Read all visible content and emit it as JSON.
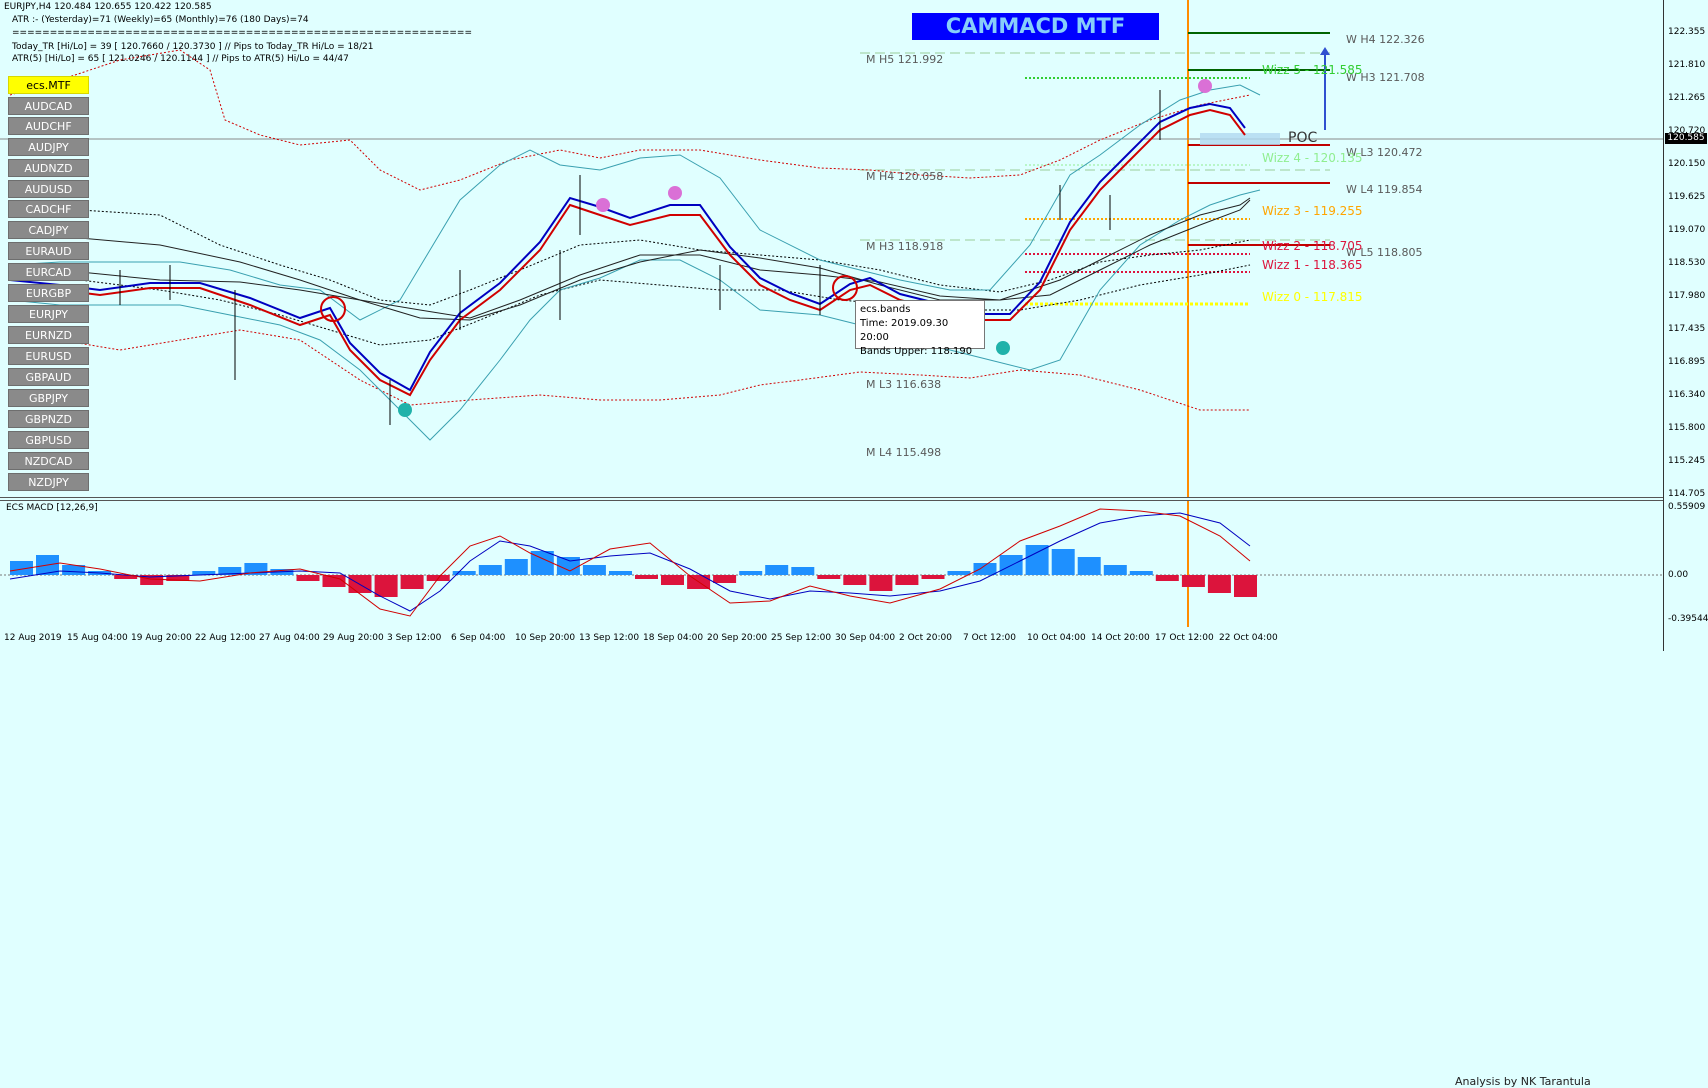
{
  "header": {
    "line1": "EURJPY,H4  120.484 120.655 120.422 120.585",
    "line2": "ATR :- (Yesterday)=71       (Weekly)=65       (Monthly)=76       (180 Days)=74",
    "line3": "=============================================================",
    "line4": "Today_TR [Hi/Lo] = 39 [ 120.7660 / 120.3730 ]   // Pips to Today_TR Hi/Lo   = 18/21",
    "line5": "ATR(5)      [Hi/Lo] = 65 [ 121.0246 / 120.1144 ]  // Pips to ATR(5) Hi/Lo      = 44/47"
  },
  "title": "CAMMACD MTF",
  "symbols": {
    "active": "ecs.MTF",
    "list": [
      "AUDCAD",
      "AUDCHF",
      "AUDJPY",
      "AUDNZD",
      "AUDUSD",
      "CADCHF",
      "CADJPY",
      "EURAUD",
      "EURCAD",
      "EURGBP",
      "EURJPY",
      "EURNZD",
      "EURUSD",
      "GBPAUD",
      "GBPJPY",
      "GBPNZD",
      "GBPUSD",
      "NZDCAD",
      "NZDJPY"
    ]
  },
  "price_scale": [
    "122.355",
    "121.810",
    "121.265",
    "120.720",
    "120.150",
    "119.625",
    "119.070",
    "118.530",
    "117.980",
    "117.435",
    "116.895",
    "116.340",
    "115.800",
    "115.245",
    "114.705"
  ],
  "current_price": "120.585",
  "macd_scale": [
    "0.55909",
    "0.00",
    "-0.39544"
  ],
  "levels": {
    "m_h5": "M  H5 121.992",
    "m_h4": "M  H4 120.058",
    "m_h3": "M  H3 118.918",
    "m_l3": "M  L3 116.638",
    "m_l4": "M  L4 115.498",
    "w_h4": "W  H4 122.326",
    "w_h3": "W  H3 121.708",
    "w_l3": "W  L3 120.472",
    "w_l4": "W  L4 119.854",
    "w_l5": "W  L5 118.805",
    "poc": "POC",
    "wizz5": "Wizz 5 - 121.585",
    "wizz4": "Wizz 4 - 120.135",
    "wizz3": "Wizz 3 - 119.255",
    "wizz2": "Wizz 2 - 118.705",
    "wizz1": "Wizz 1 - 118.365",
    "wizz0": "Wizz 0 - 117.815"
  },
  "tooltip": {
    "l1": "ecs.bands",
    "l2": "Time: 2019.09.30 20:00",
    "l3": "Bands Upper: 118.190"
  },
  "indicator_label": "ECS MACD [12,26,9]",
  "footer": "Analysis by NK Tarantula",
  "x_labels": [
    "12 Aug 2019",
    "15 Aug 04:00",
    "19 Aug 20:00",
    "22 Aug 12:00",
    "27 Aug 04:00",
    "29 Aug 20:00",
    "3 Sep 12:00",
    "6 Sep 04:00",
    "10 Sep 20:00",
    "13 Sep 12:00",
    "18 Sep 04:00",
    "20 Sep 20:00",
    "25 Sep 12:00",
    "30 Sep 04:00",
    "2 Oct 20:00",
    "7 Oct 12:00",
    "10 Oct 04:00",
    "14 Oct 20:00",
    "17 Oct 12:00",
    "22 Oct 04:00"
  ],
  "colors": {
    "background": "#e0ffff",
    "bull_histogram": "#1e90ff",
    "bear_histogram": "#dc143c",
    "current_line": "#ff8c00"
  }
}
